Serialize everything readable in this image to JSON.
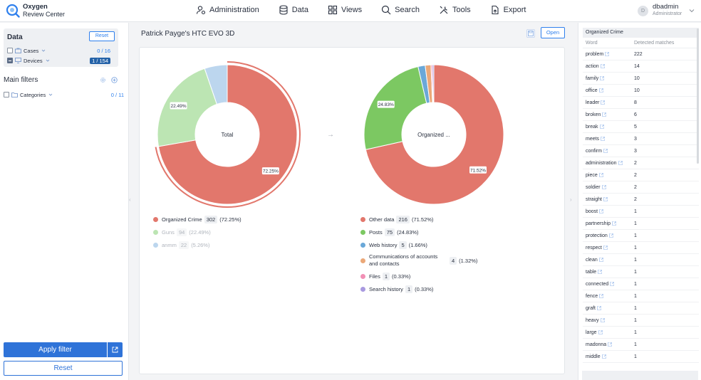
{
  "app": {
    "name_line1": "Oxygen",
    "name_line2": "Review Center"
  },
  "nav": [
    {
      "label": "Administration",
      "icon": "admin-icon"
    },
    {
      "label": "Data",
      "icon": "database-icon"
    },
    {
      "label": "Views",
      "icon": "views-icon"
    },
    {
      "label": "Search",
      "icon": "search-icon"
    },
    {
      "label": "Tools",
      "icon": "tools-icon"
    },
    {
      "label": "Export",
      "icon": "export-icon"
    }
  ],
  "user": {
    "initial": "D",
    "name": "dbadmin",
    "role": "Administrator"
  },
  "left": {
    "data_title": "Data",
    "reset_label": "Reset",
    "cases_label": "Cases",
    "cases_count": "0 / 16",
    "devices_label": "Devices",
    "devices_count": "1 / 154",
    "main_filters_title": "Main filters",
    "categories_label": "Categories",
    "categories_count": "0 / 11",
    "apply_label": "Apply filter",
    "reset_bottom_label": "Reset"
  },
  "center": {
    "title": "Patrick Payge's HTC EVO 3D",
    "open_label": "Open",
    "donut1_center": "Total",
    "donut2_center": "Organized ...",
    "colors": {
      "red": "#e2776c",
      "green_light": "#bce5b3",
      "blue_light": "#bcd6ee",
      "green": "#7cc862",
      "blue": "#6aa8d8",
      "orange": "#eba878",
      "pink": "#f190b5",
      "purple": "#a99ae0"
    }
  },
  "chart_data": [
    {
      "type": "pie",
      "categories": [
        "Organized Crime",
        "Guns",
        "anmm"
      ],
      "values": [
        302,
        94,
        22
      ],
      "percent_labels": [
        "(72.25%)",
        "(22.49%)",
        "(5.26%)"
      ],
      "slice_labels": [
        "72.25%",
        "22.49%",
        ""
      ],
      "colors": [
        "#e2776c",
        "#bce5b3",
        "#bcd6ee"
      ]
    },
    {
      "type": "pie",
      "categories": [
        "Other data",
        "Posts",
        "Web history",
        "Communications of accounts and contacts",
        "Files",
        "Search history"
      ],
      "values": [
        216,
        75,
        5,
        4,
        1,
        1
      ],
      "percent_labels": [
        "(71.52%)",
        "(24.83%)",
        "(1.66%)",
        "(1.32%)",
        "(0.33%)",
        "(0.33%)"
      ],
      "slice_labels": [
        "71.52%",
        "24.83%",
        "",
        "",
        "",
        ""
      ],
      "colors": [
        "#e2776c",
        "#7cc862",
        "#6aa8d8",
        "#eba878",
        "#f190b5",
        "#a99ae0"
      ]
    }
  ],
  "table": {
    "title": "Organized Crime",
    "col_word": "Word",
    "col_matches": "Detected matches",
    "rows": [
      {
        "word": "problem",
        "count": "222"
      },
      {
        "word": "action",
        "count": "14"
      },
      {
        "word": "family",
        "count": "10"
      },
      {
        "word": "office",
        "count": "10"
      },
      {
        "word": "leader",
        "count": "8"
      },
      {
        "word": "broken",
        "count": "6"
      },
      {
        "word": "break",
        "count": "5"
      },
      {
        "word": "meets",
        "count": "3"
      },
      {
        "word": "confirm",
        "count": "3"
      },
      {
        "word": "administration",
        "count": "2"
      },
      {
        "word": "piece",
        "count": "2"
      },
      {
        "word": "soldier",
        "count": "2"
      },
      {
        "word": "straight",
        "count": "2"
      },
      {
        "word": "boost",
        "count": "1"
      },
      {
        "word": "partnership",
        "count": "1"
      },
      {
        "word": "protection",
        "count": "1"
      },
      {
        "word": "respect",
        "count": "1"
      },
      {
        "word": "clean",
        "count": "1"
      },
      {
        "word": "table",
        "count": "1"
      },
      {
        "word": "connected",
        "count": "1"
      },
      {
        "word": "fence",
        "count": "1"
      },
      {
        "word": "graft",
        "count": "1"
      },
      {
        "word": "heavy",
        "count": "1"
      },
      {
        "word": "large",
        "count": "1"
      },
      {
        "word": "madonna",
        "count": "1"
      },
      {
        "word": "middle",
        "count": "1"
      }
    ]
  }
}
